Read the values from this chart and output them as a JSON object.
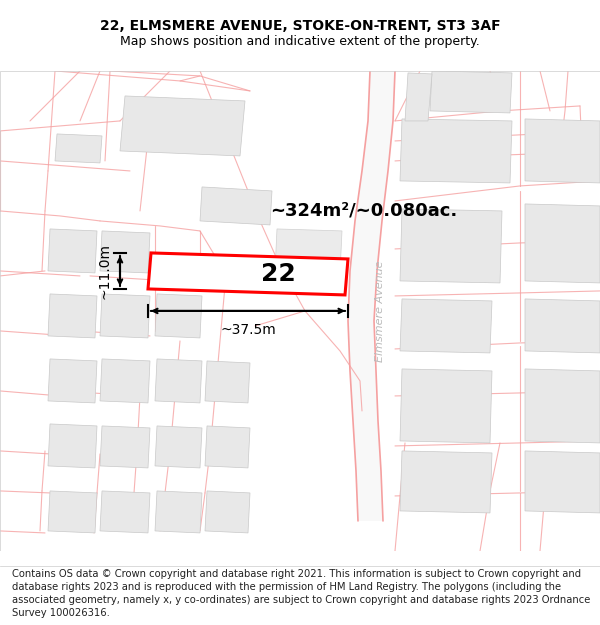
{
  "title_line1": "22, ELMSMERE AVENUE, STOKE-ON-TRENT, ST3 3AF",
  "title_line2": "Map shows position and indicative extent of the property.",
  "area_text": "~324m²/~0.080ac.",
  "number_label": "22",
  "width_label": "~37.5m",
  "height_label": "~11.0m",
  "footer_text": "Contains OS data © Crown copyright and database right 2021. This information is subject to Crown copyright and database rights 2023 and is reproduced with the permission of HM Land Registry. The polygons (including the associated geometry, namely x, y co-ordinates) are subject to Crown copyright and database rights 2023 Ordnance Survey 100026316.",
  "road_color": "#f5a0a0",
  "road_color_light": "#f0c0c0",
  "building_fill": "#e8e8e8",
  "building_edge": "#c8c8c8",
  "plot_fill": "#ffffff",
  "plot_edge": "#ff0000",
  "road_label": "Elmsmere Avenue",
  "road_label_color": "#bbbbbb",
  "title_fontsize": 10,
  "subtitle_fontsize": 9,
  "footer_fontsize": 7.2,
  "map_bg": "#ffffff",
  "border_color": "#cccccc"
}
